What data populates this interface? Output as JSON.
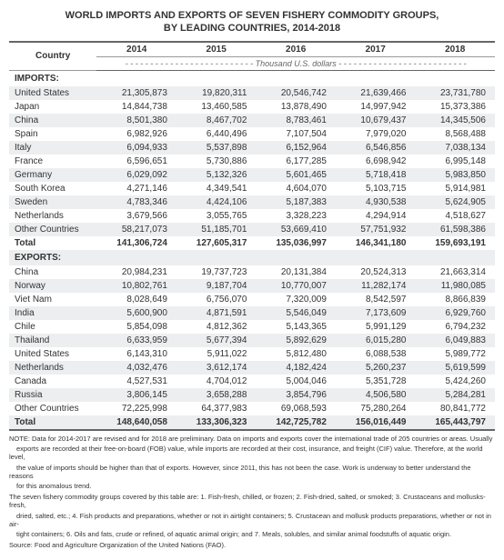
{
  "title_line1": "WORLD IMPORTS AND EXPORTS OF SEVEN FISHERY COMMODITY GROUPS,",
  "title_line2": "BY LEADING COUNTRIES, 2014-2018",
  "headers": {
    "country": "Country",
    "years": [
      "2014",
      "2015",
      "2016",
      "2017",
      "2018"
    ],
    "unit_line": "- - - - - - - - - - - - - - - - - - - - - - - - - -  Thousand U.S. dollars  - - - - - - - - - - - - - - - - - - - - - - - - - -"
  },
  "sections": {
    "imports_label": "IMPORTS:",
    "exports_label": "EXPORTS:"
  },
  "imports": [
    {
      "country": "United States",
      "v": [
        "21,305,873",
        "19,820,311",
        "20,546,742",
        "21,639,466",
        "23,731,780"
      ]
    },
    {
      "country": "Japan",
      "v": [
        "14,844,738",
        "13,460,585",
        "13,878,490",
        "14,997,942",
        "15,373,386"
      ]
    },
    {
      "country": "China",
      "v": [
        "8,501,380",
        "8,467,702",
        "8,783,461",
        "10,679,437",
        "14,345,506"
      ]
    },
    {
      "country": "Spain",
      "v": [
        "6,982,926",
        "6,440,496",
        "7,107,504",
        "7,979,020",
        "8,568,488"
      ]
    },
    {
      "country": "Italy",
      "v": [
        "6,094,933",
        "5,537,898",
        "6,152,964",
        "6,546,856",
        "7,038,134"
      ]
    },
    {
      "country": "France",
      "v": [
        "6,596,651",
        "5,730,886",
        "6,177,285",
        "6,698,942",
        "6,995,148"
      ]
    },
    {
      "country": "Germany",
      "v": [
        "6,029,092",
        "5,132,326",
        "5,601,465",
        "5,718,418",
        "5,983,850"
      ]
    },
    {
      "country": "South Korea",
      "v": [
        "4,271,146",
        "4,349,541",
        "4,604,070",
        "5,103,715",
        "5,914,981"
      ]
    },
    {
      "country": "Sweden",
      "v": [
        "4,783,346",
        "4,424,106",
        "5,187,383",
        "4,930,538",
        "5,624,905"
      ]
    },
    {
      "country": "Netherlands",
      "v": [
        "3,679,566",
        "3,055,765",
        "3,328,223",
        "4,294,914",
        "4,518,627"
      ]
    },
    {
      "country": "Other Countries",
      "v": [
        "58,217,073",
        "51,185,701",
        "53,669,410",
        "57,751,932",
        "61,598,386"
      ]
    }
  ],
  "imports_total": {
    "country": "Total",
    "v": [
      "141,306,724",
      "127,605,317",
      "135,036,997",
      "146,341,180",
      "159,693,191"
    ]
  },
  "exports": [
    {
      "country": "China",
      "v": [
        "20,984,231",
        "19,737,723",
        "20,131,384",
        "20,524,313",
        "21,663,314"
      ]
    },
    {
      "country": "Norway",
      "v": [
        "10,802,761",
        "9,187,704",
        "10,770,007",
        "11,282,174",
        "11,980,085"
      ]
    },
    {
      "country": "Viet Nam",
      "v": [
        "8,028,649",
        "6,756,070",
        "7,320,009",
        "8,542,597",
        "8,866,839"
      ]
    },
    {
      "country": "India",
      "v": [
        "5,600,900",
        "4,871,591",
        "5,546,049",
        "7,173,609",
        "6,929,760"
      ]
    },
    {
      "country": "Chile",
      "v": [
        "5,854,098",
        "4,812,362",
        "5,143,365",
        "5,991,129",
        "6,794,232"
      ]
    },
    {
      "country": "Thailand",
      "v": [
        "6,633,959",
        "5,677,394",
        "5,892,629",
        "6,015,280",
        "6,049,883"
      ]
    },
    {
      "country": "United States",
      "v": [
        "6,143,310",
        "5,911,022",
        "5,812,480",
        "6,088,538",
        "5,989,772"
      ]
    },
    {
      "country": "Netherlands",
      "v": [
        "4,032,476",
        "3,612,174",
        "4,182,424",
        "5,260,237",
        "5,619,599"
      ]
    },
    {
      "country": "Canada",
      "v": [
        "4,527,531",
        "4,704,012",
        "5,004,046",
        "5,351,728",
        "5,424,260"
      ]
    },
    {
      "country": "Russia",
      "v": [
        "3,806,145",
        "3,658,288",
        "3,854,796",
        "4,506,580",
        "5,284,281"
      ]
    },
    {
      "country": "Other Countries",
      "v": [
        "72,225,998",
        "64,377,983",
        "69,068,593",
        "75,280,264",
        "80,841,772"
      ]
    }
  ],
  "exports_total": {
    "country": "Total",
    "v": [
      "148,640,058",
      "133,306,323",
      "142,725,782",
      "156,016,449",
      "165,443,797"
    ]
  },
  "notes": {
    "n1": "NOTE: Data for 2014-2017 are revised and for 2018 are preliminary. Data on imports and exports cover the international trade of 205 countries or areas. Usually",
    "n2": "exports are recorded at their free-on-board (FOB) value, while imports are recorded at their cost, insurance, and freight (CIF) value. Therefore, at the world level,",
    "n3": "the value of imports should be higher than that of exports. However, since 2011, this has not been the case. Work is underway to better understand the reasons",
    "n4": "for this anomalous trend.",
    "n5": "The seven fishery commodity groups covered by this table are: 1. Fish-fresh, chilled, or frozen; 2. Fish-dried, salted, or smoked; 3. Crustaceans and mollusks- fresh,",
    "n6": "dried, salted, etc.; 4. Fish products and preparations, whether or not in airtight containers; 5. Crustacean and mollusk products preparations, whether or not in air-",
    "n7": "tight containers; 6. Oils and fats, crude or refined, of aquatic animal origin; and 7. Meals, solubles, and similar animal foodstuffs of aquatic origin.",
    "n8": "Source: Food and Agriculture Organization of the United Nations (FAO)."
  },
  "style": {
    "stripe_odd_bg": "#eceef0",
    "border_color": "#666666",
    "text_color": "#333333"
  }
}
